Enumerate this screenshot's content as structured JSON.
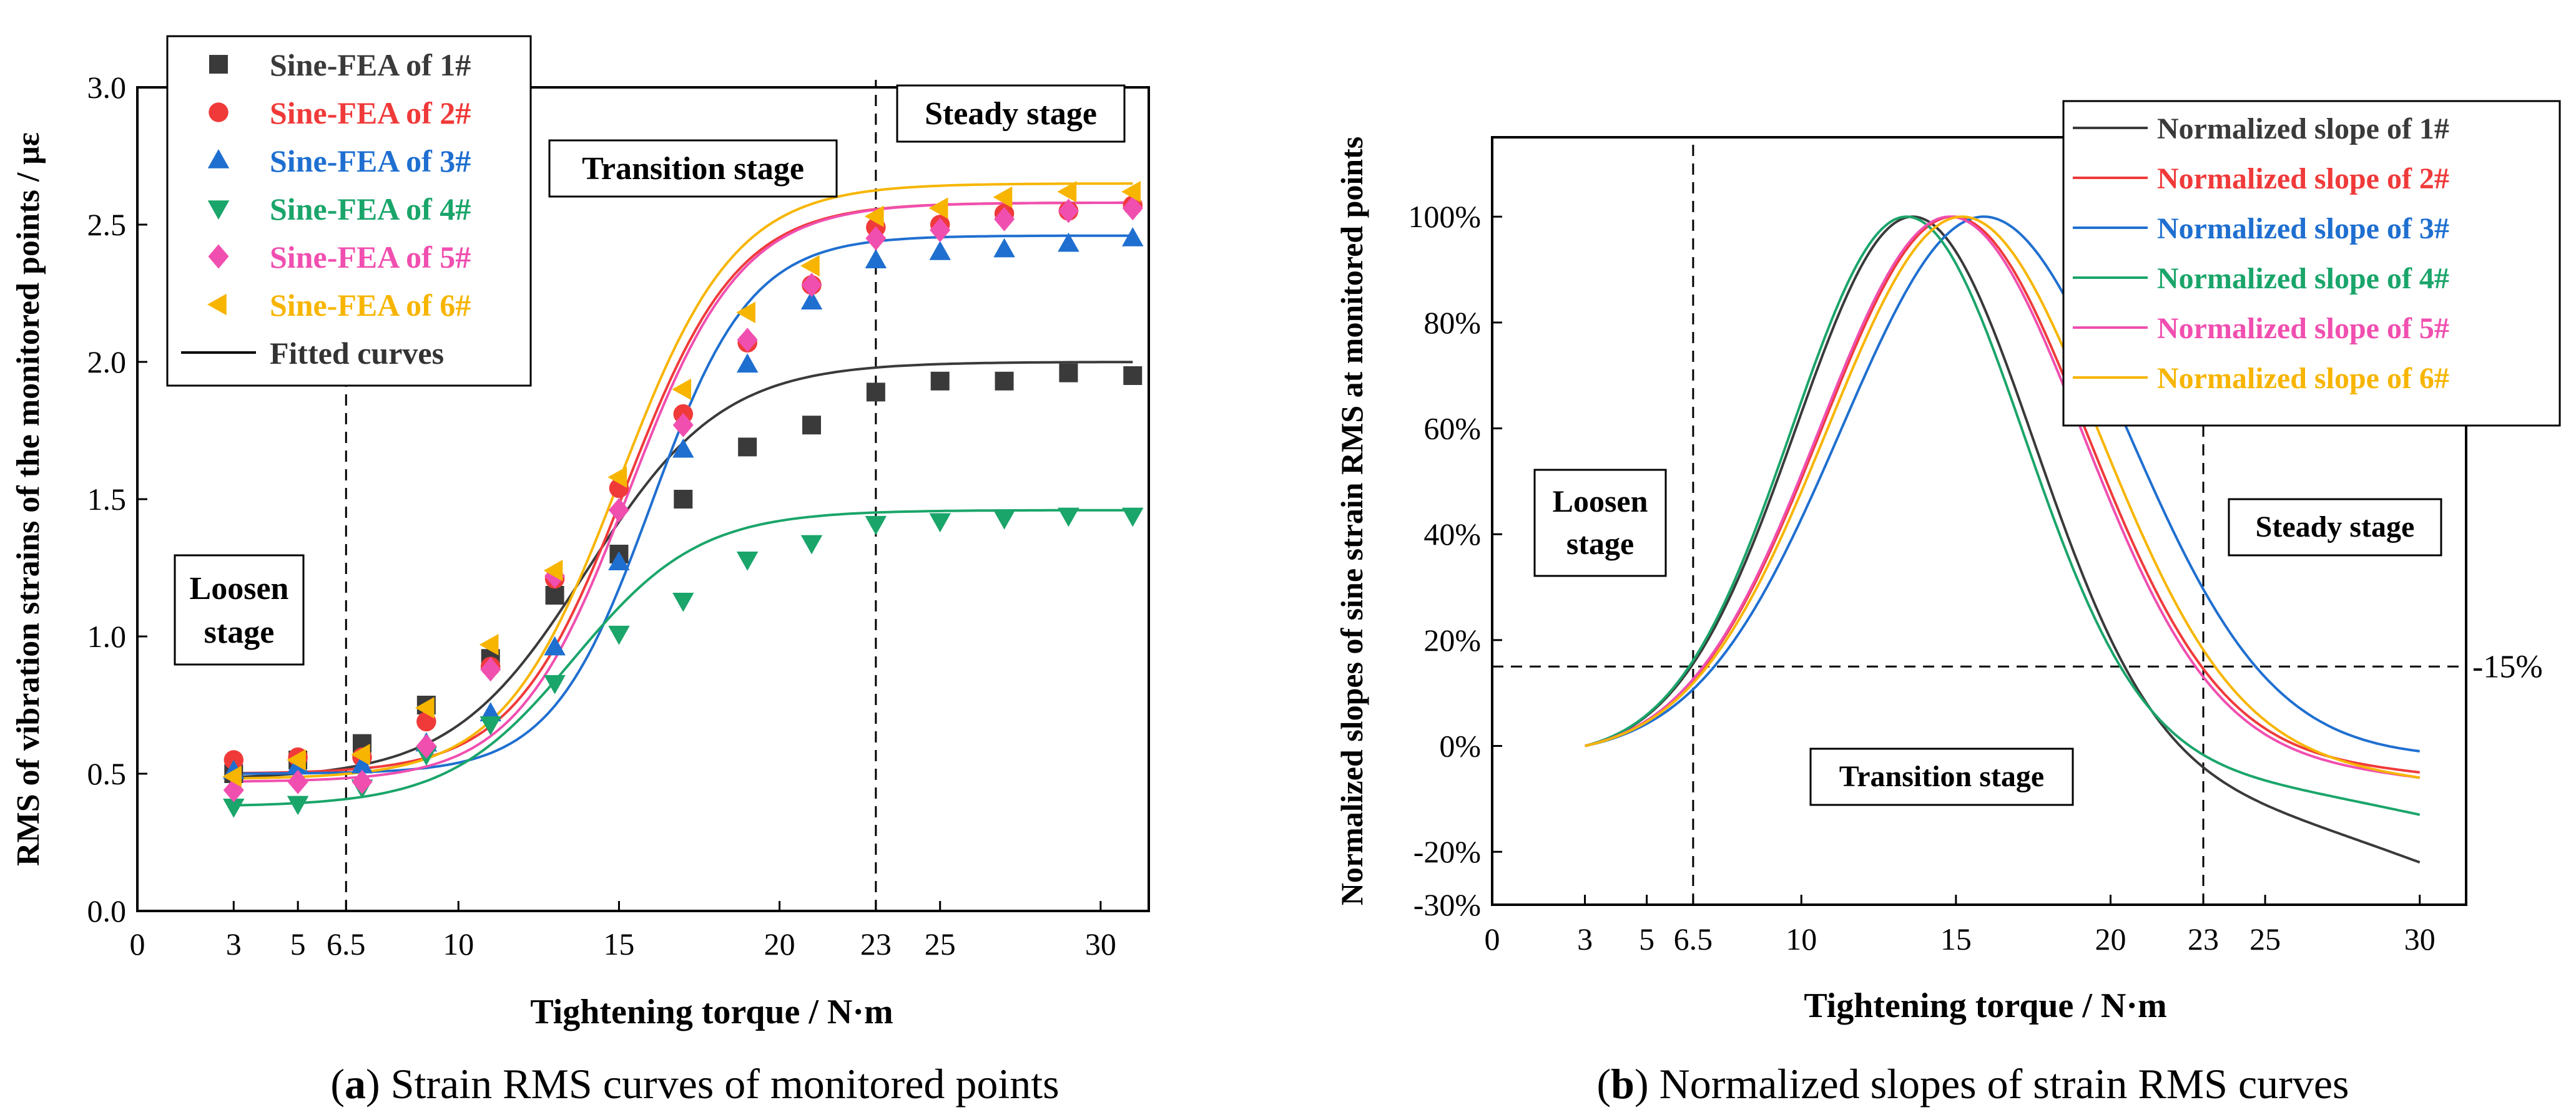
{
  "chart_data": [
    {
      "id": "a",
      "type": "scatter",
      "title": "",
      "caption": {
        "label": "a",
        "text": "Strain RMS curves of monitored points"
      },
      "xlabel": "Tightening torque / N·m",
      "ylabel": "RMS of vibration strains of the monitored points / με",
      "xlim": [
        0,
        31.5
      ],
      "ylim": [
        0,
        3.0
      ],
      "xticks": [
        0,
        3,
        5,
        6.5,
        10,
        15,
        20,
        23,
        25,
        30
      ],
      "xtick_labels": [
        "0",
        "3",
        "5",
        "6.5",
        "10",
        "15",
        "20",
        "23",
        "25",
        "30"
      ],
      "yticks": [
        0,
        0.5,
        1.0,
        1.5,
        2.0,
        2.5,
        3.0
      ],
      "ytick_labels": [
        "0.0",
        "0.5",
        "1.0",
        "1.5",
        "2.0",
        "2.5",
        "3.0"
      ],
      "vlines": [
        6.5,
        23
      ],
      "stage_labels": [
        "Loosen",
        "stage",
        "Transition stage",
        "Steady stage"
      ],
      "legend_position": "top-left",
      "x": [
        3,
        5,
        7,
        9,
        11,
        13,
        15,
        17,
        19,
        21,
        23,
        25,
        27,
        29,
        31
      ],
      "series": [
        {
          "name": "Sine-FEA of 1#",
          "color": "#3a3a3a",
          "marker": "square",
          "fit": [
            0.48,
            2.0,
            14.0,
            2.1
          ],
          "values": [
            0.5,
            0.55,
            0.61,
            0.75,
            0.92,
            1.15,
            1.3,
            1.5,
            1.69,
            1.77,
            1.89,
            1.93,
            1.93,
            1.96,
            1.95
          ]
        },
        {
          "name": "Sine-FEA of 2#",
          "color": "#f03a3a",
          "marker": "circle",
          "fit": [
            0.5,
            2.58,
            15.2,
            1.75
          ],
          "values": [
            0.55,
            0.56,
            0.56,
            0.69,
            0.89,
            1.21,
            1.54,
            1.81,
            2.07,
            2.28,
            2.49,
            2.5,
            2.54,
            2.55,
            2.57
          ]
        },
        {
          "name": "Sine-FEA of 3#",
          "color": "#1f6fd0",
          "marker": "triangle-up",
          "fit": [
            0.5,
            2.46,
            16.0,
            1.55
          ],
          "values": [
            0.51,
            0.53,
            0.53,
            0.61,
            0.72,
            0.96,
            1.27,
            1.68,
            1.99,
            2.22,
            2.37,
            2.4,
            2.41,
            2.43,
            2.45
          ]
        },
        {
          "name": "Sine-FEA of 4#",
          "color": "#1aa56a",
          "marker": "triangle-down",
          "fit": [
            0.38,
            1.46,
            13.6,
            1.95
          ],
          "values": [
            0.38,
            0.39,
            0.45,
            0.57,
            0.68,
            0.83,
            1.01,
            1.13,
            1.28,
            1.34,
            1.41,
            1.42,
            1.43,
            1.44,
            1.44
          ]
        },
        {
          "name": "Sine-FEA of 5#",
          "color": "#f04fb0",
          "marker": "diamond",
          "fit": [
            0.47,
            2.58,
            15.3,
            1.75
          ],
          "values": [
            0.44,
            0.47,
            0.47,
            0.6,
            0.88,
            1.22,
            1.46,
            1.77,
            2.08,
            2.28,
            2.45,
            2.48,
            2.52,
            2.55,
            2.56
          ]
        },
        {
          "name": "Sine-FEA of 6#",
          "color": "#f7b500",
          "marker": "triangle-left",
          "fit": [
            0.48,
            2.65,
            15.0,
            1.8
          ],
          "values": [
            0.49,
            0.55,
            0.57,
            0.74,
            0.97,
            1.24,
            1.58,
            1.9,
            2.18,
            2.35,
            2.53,
            2.56,
            2.6,
            2.62,
            2.62
          ]
        },
        {
          "name": "Fitted curves",
          "color": "#000000",
          "marker": "line"
        }
      ]
    },
    {
      "id": "b",
      "type": "line",
      "title": "",
      "caption": {
        "label": "b",
        "text": "Normalized slopes of strain RMS curves"
      },
      "xlabel": "Tightening torque / N·m",
      "ylabel": "Normalized slopes of sine strain RMS at monitored points",
      "xlim": [
        0,
        31.5
      ],
      "ylim": [
        -30,
        115
      ],
      "xticks": [
        0,
        3,
        5,
        6.5,
        10,
        15,
        20,
        23,
        25,
        30
      ],
      "xtick_labels": [
        "0",
        "3",
        "5",
        "6.5",
        "10",
        "15",
        "20",
        "23",
        "25",
        "30"
      ],
      "yticks": [
        -30,
        -20,
        0,
        20,
        40,
        60,
        80,
        100
      ],
      "ytick_labels": [
        "-30%",
        "-20%",
        "0%",
        "20%",
        "40%",
        "60%",
        "80%",
        "100%"
      ],
      "vlines": [
        6.5,
        23
      ],
      "hline": 15,
      "hline_label": "15%",
      "stage_labels": [
        "Loosen",
        "stage",
        "Transition stage",
        "Steady stage"
      ],
      "legend_position": "top-right",
      "series": [
        {
          "name": "Normalized slope of 1#",
          "color": "#3a3a3a",
          "curve": [
            3,
            13.6,
            30,
            -22
          ]
        },
        {
          "name": "Normalized slope of 2#",
          "color": "#f03a3a",
          "curve": [
            3,
            14.9,
            30,
            -5
          ]
        },
        {
          "name": "Normalized slope of 3#",
          "color": "#1f6fd0",
          "curve": [
            3,
            15.9,
            30,
            -1
          ]
        },
        {
          "name": "Normalized slope of 4#",
          "color": "#1aa56a",
          "curve": [
            3,
            13.4,
            30,
            -13
          ]
        },
        {
          "name": "Normalized slope of 5#",
          "color": "#f04fb0",
          "curve": [
            3,
            14.8,
            30,
            -6
          ]
        },
        {
          "name": "Normalized slope of 6#",
          "color": "#f7b500",
          "curve": [
            3,
            15.2,
            30,
            -6
          ]
        }
      ]
    }
  ]
}
